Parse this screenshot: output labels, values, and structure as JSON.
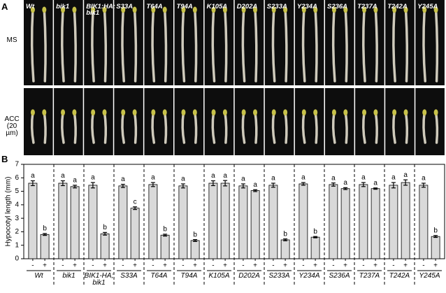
{
  "panel_labels": [
    "A",
    "B"
  ],
  "panel_a": {
    "genotypes": [
      "Wt",
      "bik1",
      "BIK1:HA;\nbik1",
      "S33A",
      "T64A",
      "T94A",
      "K105A",
      "D202A",
      "S233A",
      "Y234A",
      "S236A",
      "T237A",
      "T242A",
      "Y245A"
    ],
    "rows": [
      "MS",
      "ACC\n(20 µm)"
    ]
  },
  "chart_data": {
    "type": "bar",
    "ylabel": "Hypocotyl length (mm)",
    "categories": [
      "Wt",
      "bik1",
      "BIK1-HA;\nbik1",
      "S33A",
      "T64A",
      "T94A",
      "K105A",
      "D202A",
      "S233A",
      "Y234A",
      "S236A",
      "T237A",
      "T242A",
      "Y245A"
    ],
    "series": [
      {
        "name": "-",
        "color": "#d9d9d9",
        "values": [
          5.6,
          5.6,
          5.45,
          5.4,
          5.5,
          5.4,
          5.6,
          5.4,
          5.45,
          5.55,
          5.5,
          5.5,
          5.45,
          5.45
        ],
        "errors": [
          0.18,
          0.18,
          0.2,
          0.12,
          0.15,
          0.15,
          0.18,
          0.15,
          0.15,
          0.1,
          0.12,
          0.15,
          0.2,
          0.15
        ],
        "letters": [
          "a",
          "a",
          "a",
          "a",
          "a",
          "a",
          "a",
          "a",
          "a",
          "a",
          "a",
          "a",
          "a",
          "a"
        ]
      },
      {
        "name": "+",
        "color": "#d9d9d9",
        "values": [
          1.8,
          5.35,
          1.85,
          3.75,
          1.75,
          1.35,
          5.6,
          5.05,
          1.4,
          1.6,
          5.2,
          5.2,
          5.65,
          1.65
        ],
        "errors": [
          0.07,
          0.1,
          0.1,
          0.1,
          0.07,
          0.07,
          0.2,
          0.07,
          0.07,
          0.05,
          0.07,
          0.05,
          0.2,
          0.07
        ],
        "letters": [
          "b",
          "a",
          "b",
          "c",
          "b",
          "b",
          "a",
          "a",
          "b",
          "b",
          "a",
          "a",
          "a",
          "b"
        ]
      }
    ],
    "ylim": [
      0,
      7
    ],
    "yticks": [
      0,
      1,
      2,
      3,
      4,
      5,
      6,
      7
    ],
    "group_separators": true
  }
}
